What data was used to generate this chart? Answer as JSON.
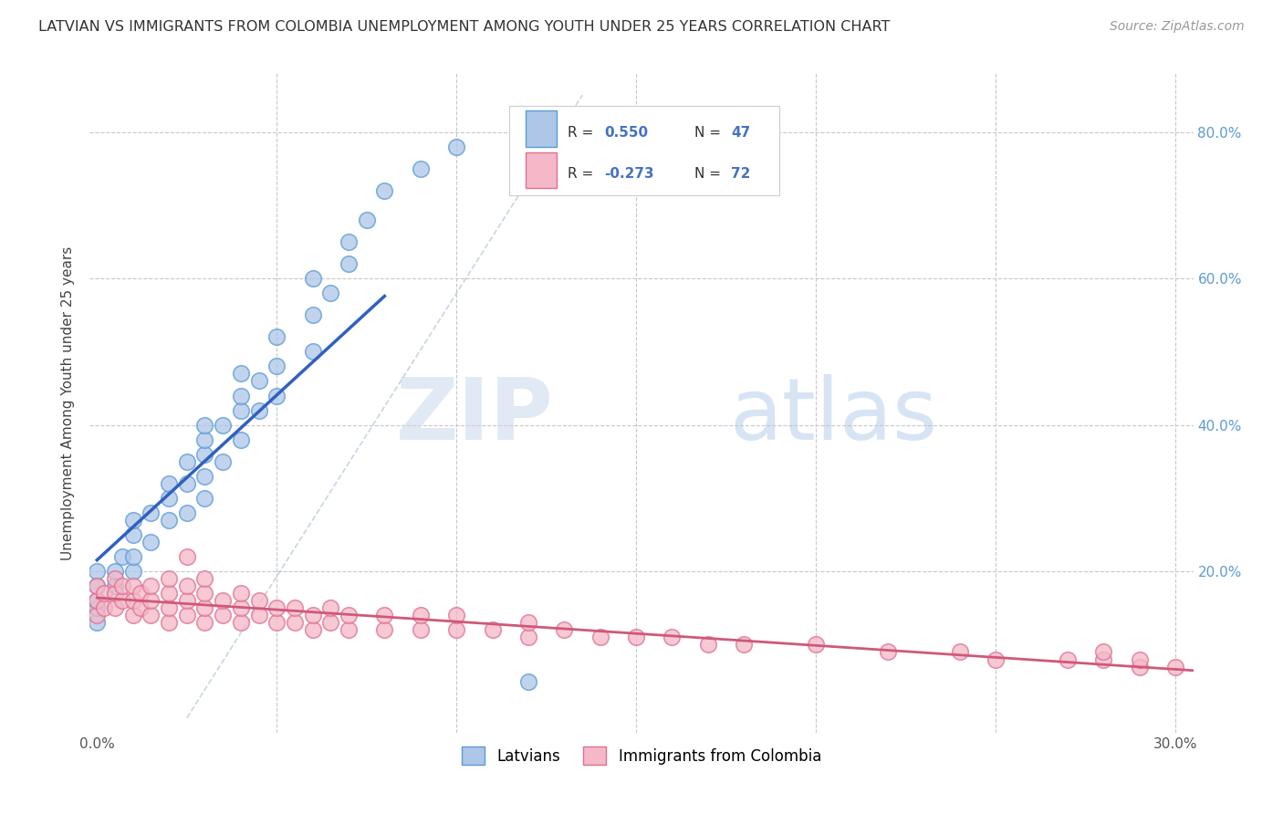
{
  "title": "LATVIAN VS IMMIGRANTS FROM COLOMBIA UNEMPLOYMENT AMONG YOUTH UNDER 25 YEARS CORRELATION CHART",
  "source": "Source: ZipAtlas.com",
  "ylabel": "Unemployment Among Youth under 25 years",
  "xlim": [
    -0.002,
    0.305
  ],
  "ylim": [
    -0.02,
    0.88
  ],
  "latvian_color": "#aec6e8",
  "latvian_edge": "#5b9bd5",
  "colombia_color": "#f4b8c8",
  "colombia_edge": "#e07090",
  "regression_latvian_color": "#3060c0",
  "regression_colombia_color": "#d05878",
  "R_latvian": 0.55,
  "N_latvian": 47,
  "R_colombia": -0.273,
  "N_colombia": 72,
  "background_color": "#ffffff",
  "grid_color": "#c8c8c8",
  "watermark_zip": "ZIP",
  "watermark_atlas": "atlas",
  "latvian_x": [
    0.0,
    0.0,
    0.0,
    0.0,
    0.0,
    0.005,
    0.005,
    0.007,
    0.01,
    0.01,
    0.01,
    0.01,
    0.015,
    0.015,
    0.02,
    0.02,
    0.02,
    0.025,
    0.025,
    0.025,
    0.03,
    0.03,
    0.03,
    0.03,
    0.03,
    0.035,
    0.035,
    0.04,
    0.04,
    0.04,
    0.04,
    0.045,
    0.045,
    0.05,
    0.05,
    0.05,
    0.06,
    0.06,
    0.06,
    0.065,
    0.07,
    0.07,
    0.075,
    0.08,
    0.09,
    0.1,
    0.12
  ],
  "latvian_y": [
    0.13,
    0.15,
    0.16,
    0.18,
    0.2,
    0.18,
    0.2,
    0.22,
    0.2,
    0.22,
    0.25,
    0.27,
    0.24,
    0.28,
    0.27,
    0.3,
    0.32,
    0.28,
    0.32,
    0.35,
    0.3,
    0.33,
    0.36,
    0.38,
    0.4,
    0.35,
    0.4,
    0.38,
    0.42,
    0.44,
    0.47,
    0.42,
    0.46,
    0.44,
    0.48,
    0.52,
    0.5,
    0.55,
    0.6,
    0.58,
    0.62,
    0.65,
    0.68,
    0.72,
    0.75,
    0.78,
    0.05
  ],
  "colombia_x": [
    0.0,
    0.0,
    0.0,
    0.002,
    0.002,
    0.005,
    0.005,
    0.005,
    0.007,
    0.007,
    0.01,
    0.01,
    0.01,
    0.012,
    0.012,
    0.015,
    0.015,
    0.015,
    0.02,
    0.02,
    0.02,
    0.02,
    0.025,
    0.025,
    0.025,
    0.025,
    0.03,
    0.03,
    0.03,
    0.03,
    0.035,
    0.035,
    0.04,
    0.04,
    0.04,
    0.045,
    0.045,
    0.05,
    0.05,
    0.055,
    0.055,
    0.06,
    0.06,
    0.065,
    0.065,
    0.07,
    0.07,
    0.08,
    0.08,
    0.09,
    0.09,
    0.1,
    0.1,
    0.11,
    0.12,
    0.12,
    0.13,
    0.14,
    0.15,
    0.16,
    0.17,
    0.18,
    0.2,
    0.22,
    0.24,
    0.25,
    0.27,
    0.28,
    0.28,
    0.29,
    0.29,
    0.3
  ],
  "colombia_y": [
    0.14,
    0.16,
    0.18,
    0.15,
    0.17,
    0.15,
    0.17,
    0.19,
    0.16,
    0.18,
    0.14,
    0.16,
    0.18,
    0.15,
    0.17,
    0.14,
    0.16,
    0.18,
    0.13,
    0.15,
    0.17,
    0.19,
    0.14,
    0.16,
    0.18,
    0.22,
    0.13,
    0.15,
    0.17,
    0.19,
    0.14,
    0.16,
    0.13,
    0.15,
    0.17,
    0.14,
    0.16,
    0.13,
    0.15,
    0.13,
    0.15,
    0.12,
    0.14,
    0.13,
    0.15,
    0.12,
    0.14,
    0.12,
    0.14,
    0.12,
    0.14,
    0.12,
    0.14,
    0.12,
    0.11,
    0.13,
    0.12,
    0.11,
    0.11,
    0.11,
    0.1,
    0.1,
    0.1,
    0.09,
    0.09,
    0.08,
    0.08,
    0.08,
    0.09,
    0.07,
    0.08,
    0.07
  ]
}
